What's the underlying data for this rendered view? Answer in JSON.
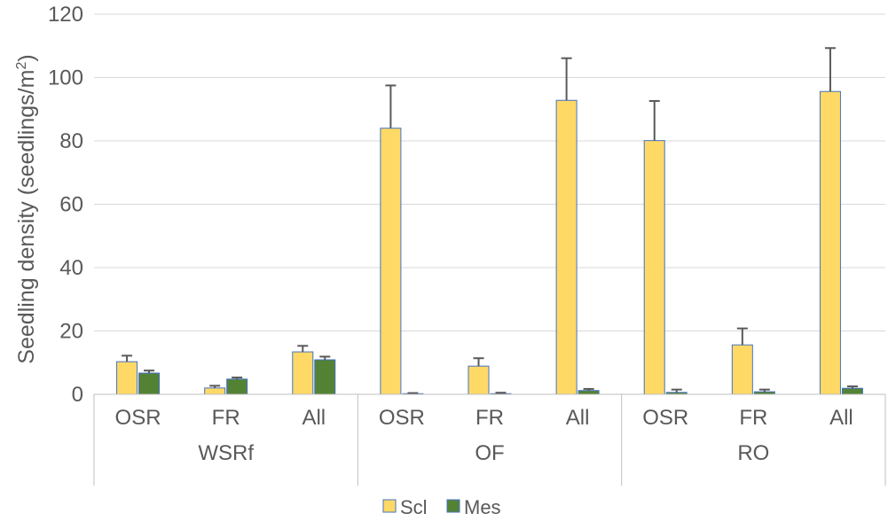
{
  "chart_data": {
    "type": "bar",
    "title": "",
    "ylabel_main": "Seedling density (seedlings/m",
    "ylabel_sup": "2",
    "ylabel_close": ")",
    "ylim": [
      0,
      120
    ],
    "yticks": [
      0,
      20,
      40,
      60,
      80,
      100,
      120
    ],
    "gridlines": true,
    "legend_position": "bottom",
    "groups": [
      {
        "label": "WSRf",
        "categories": [
          "OSR",
          "FR",
          "All"
        ]
      },
      {
        "label": "OF",
        "categories": [
          "OSR",
          "FR",
          "All"
        ]
      },
      {
        "label": "RO",
        "categories": [
          "OSR",
          "FR",
          "All"
        ]
      }
    ],
    "series": [
      {
        "name": "Scl",
        "color": "#FFD966",
        "edge": "#4472C4",
        "values": [
          10.3,
          2.0,
          13.4,
          84.0,
          8.9,
          92.8,
          80.1,
          15.6,
          95.6
        ],
        "errors": [
          1.9,
          0.7,
          1.9,
          13.5,
          2.5,
          13.3,
          12.5,
          5.2,
          13.7
        ]
      },
      {
        "name": "Mes",
        "color": "#548235",
        "edge": "#4472C4",
        "values": [
          6.7,
          4.8,
          10.9,
          0.2,
          0.2,
          1.2,
          0.6,
          0.8,
          1.9
        ],
        "errors": [
          0.8,
          0.5,
          1.0,
          0.2,
          0.3,
          0.5,
          0.9,
          0.7,
          0.6
        ]
      }
    ]
  }
}
